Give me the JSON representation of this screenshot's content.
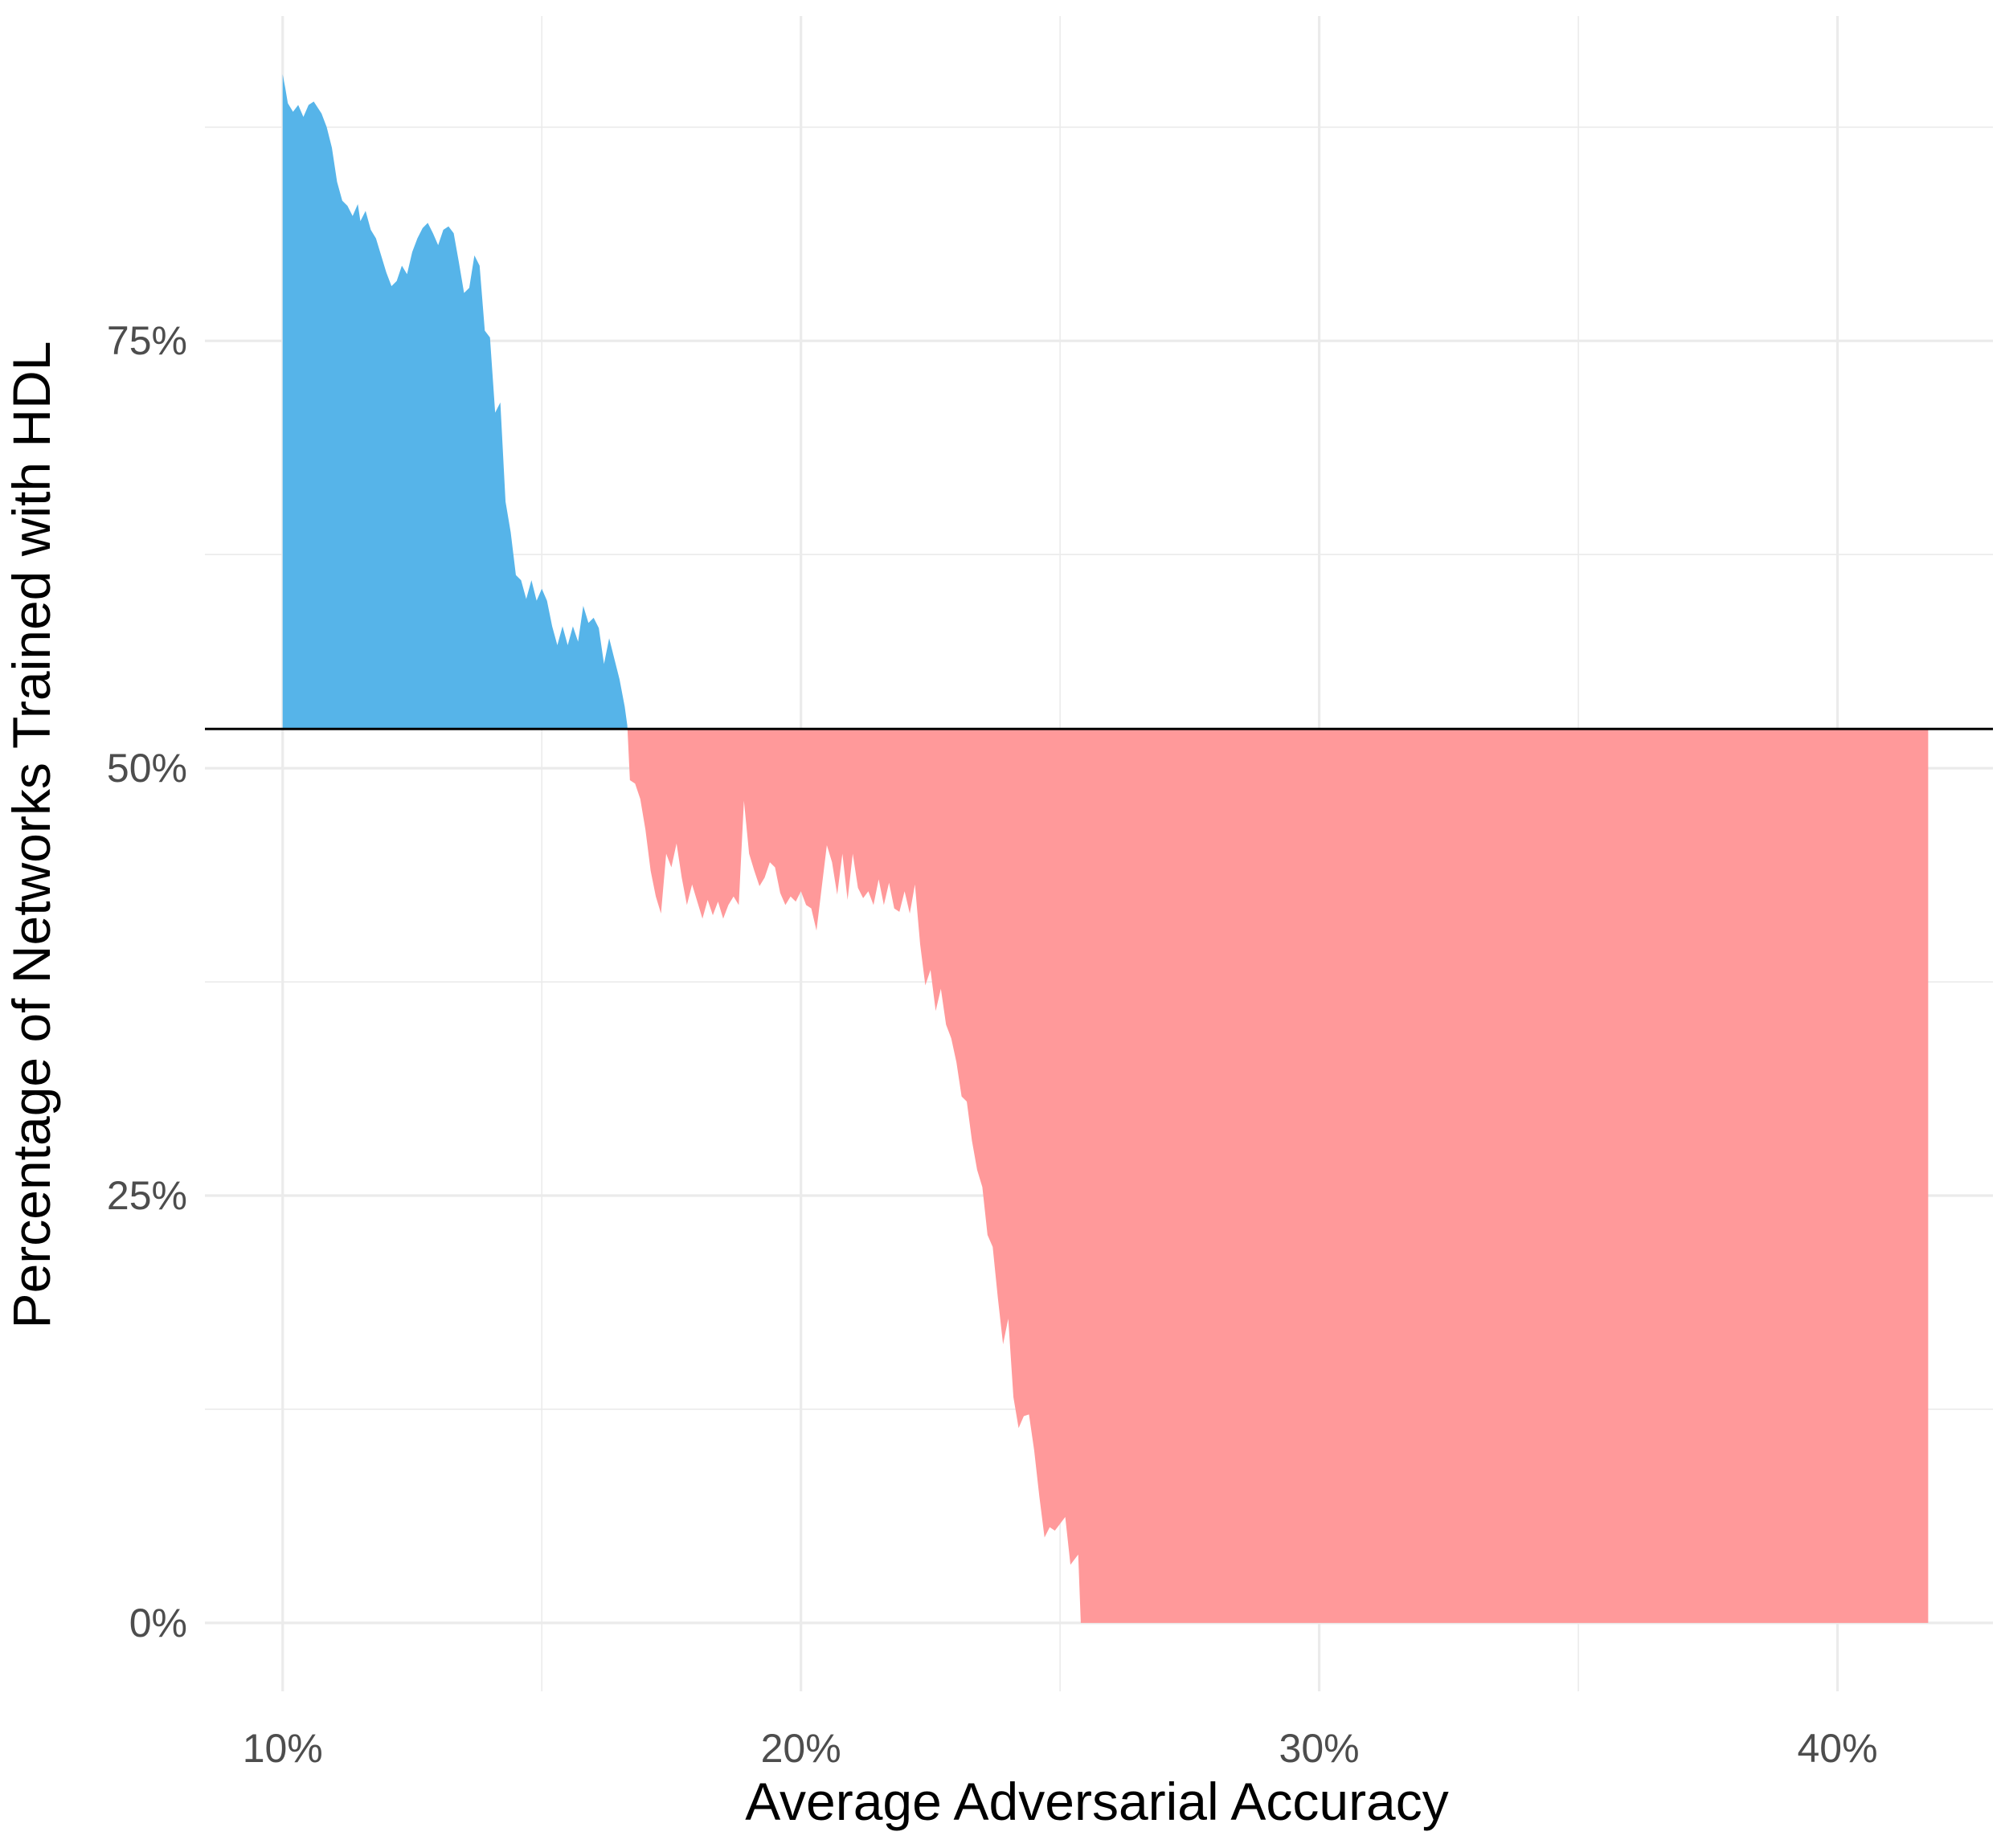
{
  "chart_data": {
    "type": "area",
    "title": "",
    "xlabel": "Average Adversarial Accuracy",
    "ylabel": "Percentage of Networks Trained with HDL",
    "xlim": [
      8.5,
      43
    ],
    "ylim": [
      -4,
      94
    ],
    "x_ticks": [
      {
        "value": 10,
        "label": "10%"
      },
      {
        "value": 20,
        "label": "20%"
      },
      {
        "value": 30,
        "label": "30%"
      },
      {
        "value": 40,
        "label": "40%"
      }
    ],
    "y_ticks": [
      {
        "value": 0,
        "label": "0%"
      },
      {
        "value": 25,
        "label": "25%"
      },
      {
        "value": 50,
        "label": "50%"
      },
      {
        "value": 75,
        "label": "75%"
      }
    ],
    "x_minor_gridlines": [
      15,
      25,
      35
    ],
    "y_minor_gridlines": [
      12.5,
      37.5,
      62.5,
      87.5
    ],
    "grid": true,
    "reference_line": {
      "y": 52.3,
      "color": "#000000"
    },
    "colors": {
      "above": "#56B4E9",
      "below": "#FF999A",
      "grid": "#EBEBEB"
    },
    "series": [
      {
        "points": [
          [
            10.0,
            90.6
          ],
          [
            10.05,
            89.8
          ],
          [
            10.1,
            88.9
          ],
          [
            10.2,
            88.4
          ],
          [
            10.3,
            88.8
          ],
          [
            10.4,
            88.1
          ],
          [
            10.5,
            88.8
          ],
          [
            10.6,
            89.0
          ],
          [
            10.75,
            88.3
          ],
          [
            10.85,
            87.5
          ],
          [
            10.95,
            86.3
          ],
          [
            11.05,
            84.3
          ],
          [
            11.15,
            83.2
          ],
          [
            11.25,
            82.9
          ],
          [
            11.35,
            82.3
          ],
          [
            11.45,
            83.0
          ],
          [
            11.5,
            82.0
          ],
          [
            11.6,
            82.6
          ],
          [
            11.7,
            81.5
          ],
          [
            11.8,
            81.0
          ],
          [
            11.9,
            80.0
          ],
          [
            12.0,
            79.0
          ],
          [
            12.1,
            78.2
          ],
          [
            12.2,
            78.5
          ],
          [
            12.3,
            79.4
          ],
          [
            12.4,
            78.9
          ],
          [
            12.5,
            80.2
          ],
          [
            12.6,
            81.0
          ],
          [
            12.7,
            81.6
          ],
          [
            12.8,
            81.9
          ],
          [
            12.9,
            81.3
          ],
          [
            13.0,
            80.6
          ],
          [
            13.1,
            81.5
          ],
          [
            13.2,
            81.7
          ],
          [
            13.3,
            81.3
          ],
          [
            13.4,
            79.6
          ],
          [
            13.5,
            77.8
          ],
          [
            13.6,
            78.1
          ],
          [
            13.7,
            80.0
          ],
          [
            13.8,
            79.4
          ],
          [
            13.9,
            75.6
          ],
          [
            14.0,
            75.2
          ],
          [
            14.1,
            70.8
          ],
          [
            14.2,
            71.4
          ],
          [
            14.3,
            65.6
          ],
          [
            14.4,
            63.8
          ],
          [
            14.5,
            61.3
          ],
          [
            14.6,
            61.0
          ],
          [
            14.7,
            59.9
          ],
          [
            14.8,
            61.0
          ],
          [
            14.9,
            59.8
          ],
          [
            15.0,
            60.5
          ],
          [
            15.1,
            59.8
          ],
          [
            15.2,
            58.3
          ],
          [
            15.3,
            57.2
          ],
          [
            15.4,
            58.3
          ],
          [
            15.5,
            57.2
          ],
          [
            15.6,
            58.3
          ],
          [
            15.7,
            57.4
          ],
          [
            15.8,
            59.5
          ],
          [
            15.9,
            58.5
          ],
          [
            16.0,
            58.8
          ],
          [
            16.1,
            58.2
          ],
          [
            16.2,
            56.1
          ],
          [
            16.3,
            57.6
          ],
          [
            16.4,
            56.4
          ],
          [
            16.5,
            55.2
          ],
          [
            16.6,
            53.6
          ],
          [
            16.65,
            52.5
          ],
          [
            16.7,
            49.3
          ],
          [
            16.8,
            49.1
          ],
          [
            16.9,
            48.2
          ],
          [
            17.0,
            46.4
          ],
          [
            17.1,
            44.0
          ],
          [
            17.2,
            42.5
          ],
          [
            17.3,
            41.5
          ],
          [
            17.4,
            45.0
          ],
          [
            17.5,
            44.2
          ],
          [
            17.6,
            45.6
          ],
          [
            17.7,
            43.6
          ],
          [
            17.8,
            42.0
          ],
          [
            17.9,
            43.2
          ],
          [
            18.0,
            42.2
          ],
          [
            18.1,
            41.2
          ],
          [
            18.2,
            42.3
          ],
          [
            18.3,
            41.4
          ],
          [
            18.4,
            42.2
          ],
          [
            18.5,
            41.2
          ],
          [
            18.6,
            42.0
          ],
          [
            18.7,
            42.5
          ],
          [
            18.8,
            42.0
          ],
          [
            18.9,
            48.1
          ],
          [
            19.0,
            45.0
          ],
          [
            19.1,
            44.0
          ],
          [
            19.2,
            43.1
          ],
          [
            19.3,
            43.6
          ],
          [
            19.4,
            44.5
          ],
          [
            19.5,
            44.2
          ],
          [
            19.6,
            42.7
          ],
          [
            19.7,
            42.0
          ],
          [
            19.8,
            42.5
          ],
          [
            19.9,
            42.2
          ],
          [
            20.0,
            42.8
          ],
          [
            20.1,
            42.0
          ],
          [
            20.2,
            41.8
          ],
          [
            20.3,
            40.5
          ],
          [
            20.4,
            43.0
          ],
          [
            20.5,
            45.5
          ],
          [
            20.6,
            44.5
          ],
          [
            20.7,
            42.6
          ],
          [
            20.8,
            45.0
          ],
          [
            20.9,
            42.3
          ],
          [
            21.0,
            45.0
          ],
          [
            21.1,
            43.0
          ],
          [
            21.2,
            42.4
          ],
          [
            21.3,
            42.8
          ],
          [
            21.4,
            42.0
          ],
          [
            21.5,
            43.5
          ],
          [
            21.6,
            42.0
          ],
          [
            21.7,
            43.3
          ],
          [
            21.8,
            41.8
          ],
          [
            21.9,
            41.6
          ],
          [
            22.0,
            42.8
          ],
          [
            22.1,
            41.5
          ],
          [
            22.2,
            43.2
          ],
          [
            22.3,
            39.7
          ],
          [
            22.4,
            37.3
          ],
          [
            22.5,
            38.2
          ],
          [
            22.6,
            35.8
          ],
          [
            22.7,
            37.1
          ],
          [
            22.8,
            35.0
          ],
          [
            22.9,
            34.2
          ],
          [
            23.0,
            32.8
          ],
          [
            23.1,
            30.8
          ],
          [
            23.2,
            30.5
          ],
          [
            23.3,
            28.2
          ],
          [
            23.4,
            26.5
          ],
          [
            23.5,
            25.5
          ],
          [
            23.6,
            22.7
          ],
          [
            23.7,
            22.0
          ],
          [
            23.8,
            19.0
          ],
          [
            23.9,
            16.3
          ],
          [
            24.0,
            17.8
          ],
          [
            24.1,
            13.2
          ],
          [
            24.2,
            11.4
          ],
          [
            24.3,
            12.1
          ],
          [
            24.4,
            12.2
          ],
          [
            24.5,
            10.1
          ],
          [
            24.6,
            7.4
          ],
          [
            24.7,
            5.0
          ],
          [
            24.8,
            5.6
          ],
          [
            24.9,
            5.4
          ],
          [
            25.0,
            5.8
          ],
          [
            25.1,
            6.2
          ],
          [
            25.2,
            3.4
          ],
          [
            25.3,
            3.8
          ],
          [
            25.35,
            4.0
          ],
          [
            25.4,
            0.0
          ],
          [
            41.75,
            0.0
          ]
        ]
      }
    ]
  }
}
